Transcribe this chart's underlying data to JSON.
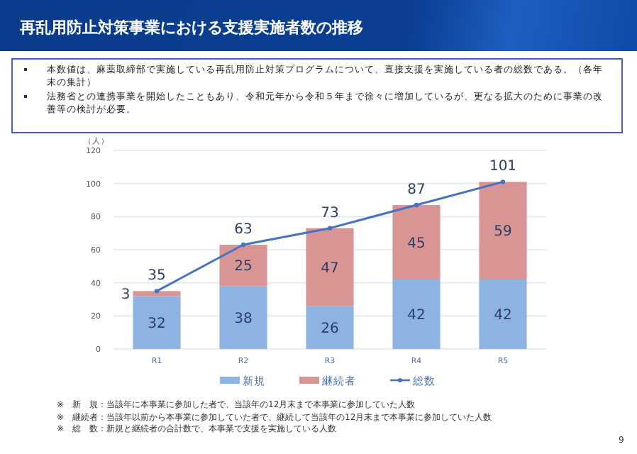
{
  "chart_data": {
    "type": "bar",
    "stacked": true,
    "title": "再乱用防止対策事業における支援実施者数の推移",
    "ylabel": "（人）",
    "categories": [
      "R1",
      "R2",
      "R3",
      "R4",
      "R5"
    ],
    "series": [
      {
        "name": "新規",
        "color": "#8db3e2",
        "values": [
          32,
          38,
          26,
          42,
          42
        ]
      },
      {
        "name": "継続者",
        "color": "#d99594",
        "values": [
          3,
          25,
          47,
          45,
          59
        ]
      },
      {
        "name": "総数",
        "type": "line",
        "color": "#4472c4",
        "marker": "circle",
        "line_style": "solid",
        "values": [
          35,
          63,
          73,
          87,
          101
        ]
      }
    ],
    "ylim": [
      0,
      120
    ],
    "yticks": [
      0,
      20,
      40,
      60,
      80,
      100,
      120
    ],
    "grid": "y",
    "legend": "bottom",
    "data_labels": true,
    "annotations": [
      "本数値は、麻薬取締部で実施している再乱用防止対策プログラムについて、直接支援を実施している者の総数である。（各年末の集計）",
      "法務省との連携事業を開始したこともあり、令和元年から令和５年まで徐々に増加しているが、更なる拡大のために事業の改善等の検討が必要。",
      "※　新　規：当該年に本事業に参加した者で、当該年の12月末まで本事業に参加していた人数",
      "※　継続者：当該年以前から本事業に参加していた者で、継続して当該年の12月末まで本事業に参加していた人数",
      "※　総　数：新規と継続者の合計数で、本事業で支援を実施している人数",
      "9"
    ]
  }
}
